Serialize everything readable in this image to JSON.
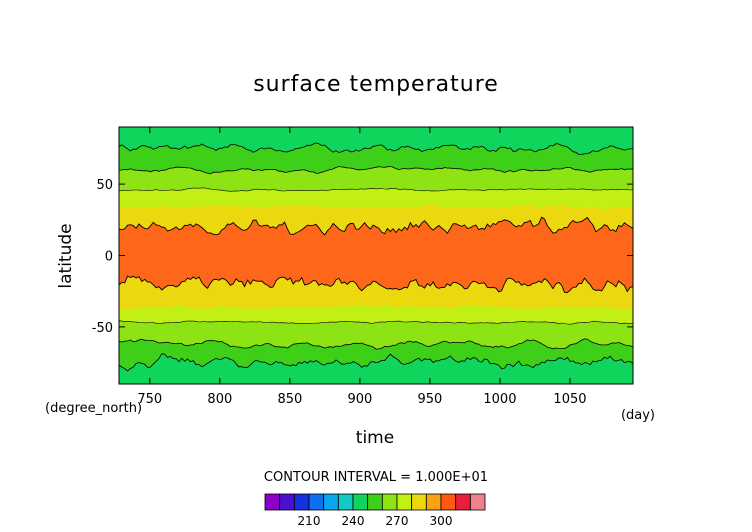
{
  "chart_data": {
    "type": "heatmap",
    "title": "surface temperature",
    "xlabel": "time",
    "ylabel": "latitude",
    "x_unit": "(day)",
    "y_unit": "(degree_north)",
    "xlim": [
      728,
      1095
    ],
    "ylim": [
      -90,
      90
    ],
    "xticks": [
      750,
      800,
      850,
      900,
      950,
      1000,
      1050
    ],
    "yticks": [
      50,
      0,
      -50
    ],
    "contour_interval_text": "CONTOUR INTERVAL = 1.000E+01",
    "colorbar": {
      "levels": [
        190,
        200,
        210,
        220,
        230,
        240,
        250,
        260,
        270,
        280,
        290,
        300,
        310
      ],
      "colors": [
        "#8a00c8",
        "#4b0fd0",
        "#1532e0",
        "#0e6ff0",
        "#0aa6ee",
        "#12c9c4",
        "#10d55c",
        "#3ed018",
        "#8ee314",
        "#c2f014",
        "#ecd80e",
        "#fba214",
        "#ff5a14",
        "#e81e3a",
        "#f08090"
      ],
      "tick_labels": [
        210,
        240,
        270,
        300
      ]
    },
    "bands": [
      {
        "lower": 260,
        "upper": 270,
        "color": "#8ee314"
      },
      {
        "lower": 250,
        "upper": 260,
        "color": "#3ed018"
      },
      {
        "lower": 240,
        "upper": 250,
        "color": "#10d55c"
      },
      {
        "lower": 270,
        "upper": 280,
        "color": "#c2f014"
      },
      {
        "lower": 280,
        "upper": 290,
        "color": "#ecd80e"
      },
      {
        "lower": 290,
        "upper": 300,
        "color": "#fe6619"
      }
    ],
    "zonal_mean_profile": {
      "latitude": [
        -90,
        -80,
        -70,
        -60,
        -50,
        -40,
        -30,
        -20,
        -10,
        0,
        10,
        20,
        30,
        40,
        50,
        60,
        70,
        80,
        90
      ],
      "temperature": [
        245,
        252,
        262,
        270,
        276,
        283,
        289,
        294,
        297,
        298,
        297,
        295,
        291,
        285,
        279,
        270,
        262,
        255,
        248
      ]
    },
    "grid": false,
    "legend": "colorbar-bottom"
  }
}
